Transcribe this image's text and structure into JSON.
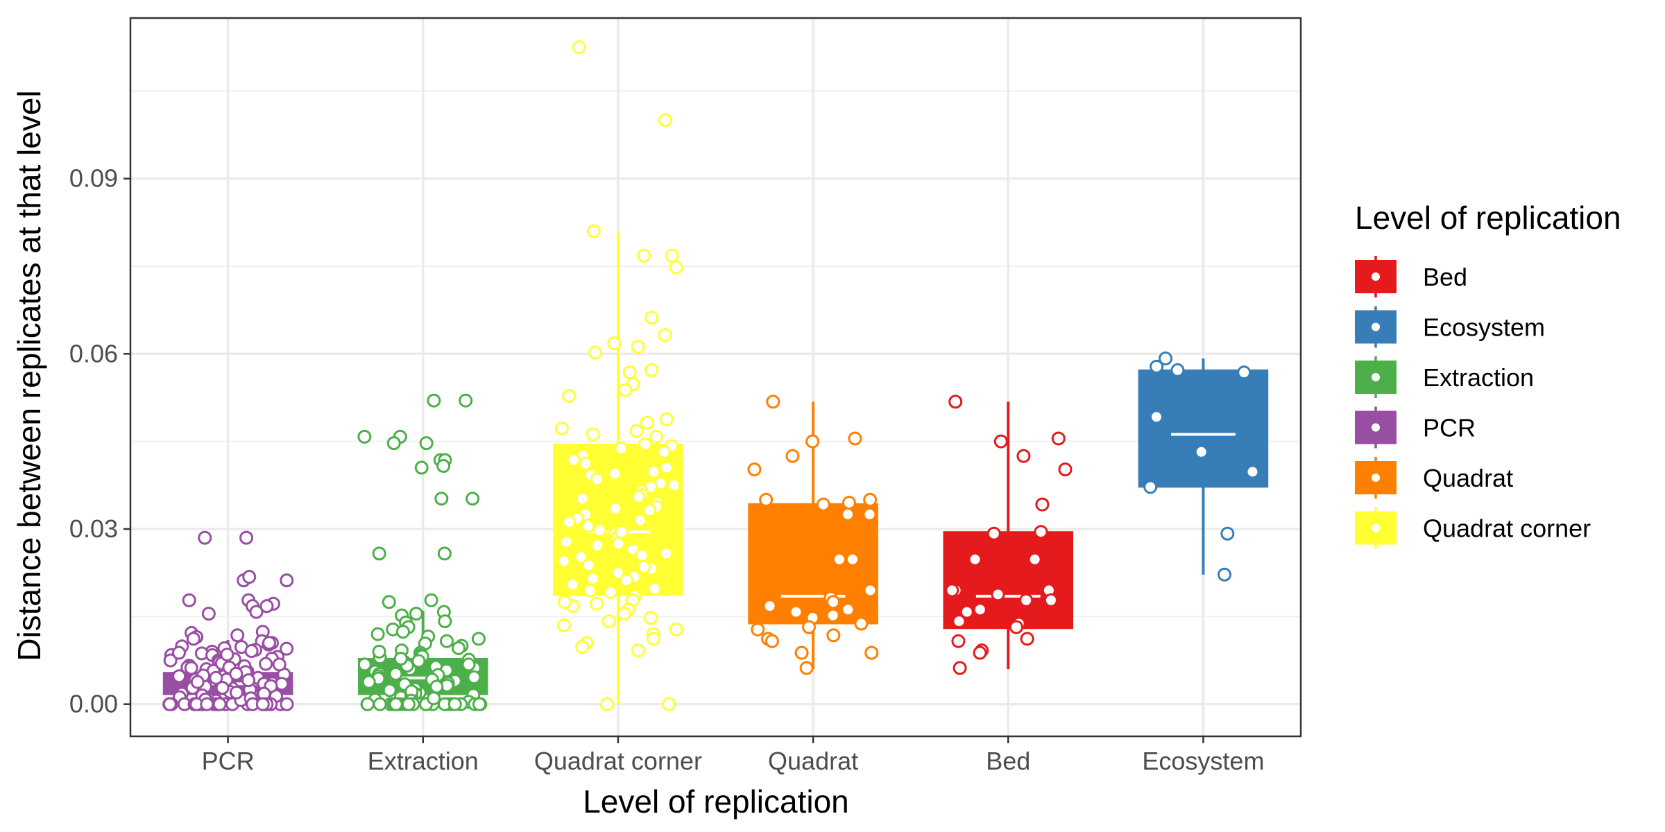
{
  "chart_data": {
    "type": "boxplot",
    "xlabel": "Level of replication",
    "ylabel": "Distance between replicates at that level",
    "ylim": [
      -0.0055,
      0.1175
    ],
    "yticks": [
      "0.00",
      "0.03",
      "0.06",
      "0.09"
    ],
    "ytick_values": [
      0,
      0.03,
      0.06,
      0.09
    ],
    "grid": true,
    "legend_position": "right",
    "legend_title": "Level of replication",
    "legend_items": [
      "Bed",
      "Ecosystem",
      "Extraction",
      "PCR",
      "Quadrat",
      "Quadrat corner"
    ],
    "categories": [
      "PCR",
      "Extraction",
      "Quadrat corner",
      "Quadrat",
      "Bed",
      "Ecosystem"
    ],
    "series": [
      {
        "name": "PCR",
        "color": "#984EA3",
        "box": {
          "q1": 0.0017,
          "median": 0.0035,
          "q3": 0.0054,
          "whisker_low": 0.0,
          "whisker_high": 0.011
        },
        "points": [
          0.0285,
          0.0285,
          0.0212,
          0.0212,
          0.0218,
          0.0178,
          0.0178,
          0.0172,
          0.0168,
          0.0168,
          0.0158,
          0.0155,
          0.0124,
          0.0122,
          0.0118,
          0.0115,
          0.0112,
          0.0108,
          0.0105,
          0.0102,
          0.0099,
          0.0096,
          0.0093,
          0.009,
          0.0087,
          0.0084,
          0.0081,
          0.0078,
          0.0075,
          0.0072,
          0.0069,
          0.0066,
          0.0063,
          0.006,
          0.0057,
          0.0054,
          0.0051,
          0.0048,
          0.0045,
          0.0042,
          0.0039,
          0.0036,
          0.0033,
          0.003,
          0.0027,
          0.0024,
          0.0021,
          0.0018,
          0.0015,
          0.0012,
          0.0009,
          0.0006,
          0.0003,
          0.0,
          0.0,
          0.0,
          0.0,
          0.0,
          0.0,
          0.0,
          0.0,
          0.0,
          0.0,
          0.0,
          0.0,
          0.0,
          0.0,
          0.0,
          0.0,
          0.0,
          0.0,
          0.0105,
          0.0098,
          0.0091,
          0.0084,
          0.0077,
          0.007,
          0.0063,
          0.0056,
          0.0049,
          0.0042,
          0.0035,
          0.0028,
          0.0021,
          0.0014,
          0.0007,
          0.0075,
          0.0065,
          0.0055,
          0.0045,
          0.0035,
          0.0025,
          0.0015,
          0.0005,
          0.0095,
          0.0085,
          0.0062,
          0.0052,
          0.0041,
          0.0031,
          0.002,
          0.001,
          0.0088,
          0.0068,
          0.0048,
          0.0038,
          0.0028,
          0.0018,
          0.0008,
          0.0,
          0.0,
          0.0,
          0.0,
          0.0,
          0.0,
          0.0,
          0.0,
          0.0,
          0.0,
          0.0
        ]
      },
      {
        "name": "Extraction",
        "color": "#4DAF4A",
        "box": {
          "q1": 0.0017,
          "median": 0.0045,
          "q3": 0.0078,
          "whisker_low": 0.0,
          "whisker_high": 0.016
        },
        "points": [
          0.052,
          0.052,
          0.0458,
          0.0458,
          0.0447,
          0.0447,
          0.0418,
          0.0418,
          0.0408,
          0.0405,
          0.0352,
          0.0352,
          0.0258,
          0.0258,
          0.0178,
          0.0175,
          0.0158,
          0.0155,
          0.0152,
          0.0142,
          0.014,
          0.0132,
          0.0128,
          0.0124,
          0.012,
          0.0116,
          0.0112,
          0.0108,
          0.0104,
          0.01,
          0.0096,
          0.0092,
          0.0088,
          0.0084,
          0.008,
          0.0076,
          0.0072,
          0.0068,
          0.0064,
          0.006,
          0.0056,
          0.0052,
          0.0048,
          0.0044,
          0.004,
          0.0036,
          0.0032,
          0.0028,
          0.0024,
          0.002,
          0.0016,
          0.0012,
          0.0008,
          0.0004,
          0.0,
          0.0,
          0.0,
          0.0,
          0.0,
          0.0,
          0.0,
          0.0,
          0.0,
          0.0,
          0.0,
          0.0,
          0.0,
          0.0,
          0.0,
          0.0,
          0.0,
          0.0,
          0.0,
          0.0,
          0.009,
          0.0082,
          0.0074,
          0.0066,
          0.0058,
          0.005,
          0.0042,
          0.0034,
          0.0026,
          0.0018,
          0.001,
          0.0078,
          0.0062,
          0.0046,
          0.003,
          0.0014,
          0.0068,
          0.0052,
          0.0038,
          0.0022,
          0.0006,
          0.0,
          0.0,
          0.0,
          0.0,
          0.0
        ]
      },
      {
        "name": "Quadrat corner",
        "color": "#FFFF33",
        "box": {
          "q1": 0.0187,
          "median": 0.0295,
          "q3": 0.0445,
          "whisker_low": 0.0,
          "whisker_high": 0.081
        },
        "points": [
          0.1125,
          0.1,
          0.081,
          0.0768,
          0.0768,
          0.0748,
          0.0662,
          0.0618,
          0.0612,
          0.0632,
          0.0602,
          0.0572,
          0.0568,
          0.0548,
          0.0538,
          0.0528,
          0.0488,
          0.0482,
          0.0472,
          0.0468,
          0.0462,
          0.0458,
          0.0445,
          0.0442,
          0.0438,
          0.0432,
          0.0425,
          0.0418,
          0.0412,
          0.0405,
          0.0398,
          0.0392,
          0.0385,
          0.0378,
          0.0372,
          0.0365,
          0.0358,
          0.0352,
          0.0345,
          0.0338,
          0.0332,
          0.0325,
          0.0318,
          0.0312,
          0.0305,
          0.0298,
          0.0292,
          0.0285,
          0.0278,
          0.0272,
          0.0265,
          0.0258,
          0.0252,
          0.0245,
          0.0238,
          0.0232,
          0.0225,
          0.0218,
          0.0212,
          0.0205,
          0.0198,
          0.0192,
          0.0185,
          0.0178,
          0.0172,
          0.0168,
          0.0162,
          0.0155,
          0.0148,
          0.0142,
          0.0135,
          0.0128,
          0.012,
          0.0112,
          0.0105,
          0.0098,
          0.0092,
          0.0,
          0.0,
          0.0395,
          0.0375,
          0.0355,
          0.0335,
          0.0315,
          0.0295,
          0.0275,
          0.0255,
          0.0235,
          0.0215,
          0.0195,
          0.0175
        ]
      },
      {
        "name": "Quadrat",
        "color": "#FF7F00",
        "box": {
          "q1": 0.0138,
          "median": 0.0185,
          "q3": 0.0343,
          "whisker_low": 0.006,
          "whisker_high": 0.0518
        },
        "points": [
          0.0518,
          0.0455,
          0.045,
          0.0425,
          0.0402,
          0.035,
          0.035,
          0.0345,
          0.0342,
          0.0325,
          0.0325,
          0.0248,
          0.0248,
          0.0195,
          0.0182,
          0.0175,
          0.0168,
          0.0162,
          0.0158,
          0.0152,
          0.0148,
          0.0138,
          0.0132,
          0.0128,
          0.0118,
          0.0112,
          0.0108,
          0.0088,
          0.0088,
          0.0062
        ]
      },
      {
        "name": "Bed",
        "color": "#E41A1C",
        "box": {
          "q1": 0.013,
          "median": 0.0185,
          "q3": 0.0295,
          "whisker_low": 0.006,
          "whisker_high": 0.0518
        },
        "points": [
          0.0518,
          0.0455,
          0.045,
          0.0425,
          0.0402,
          0.0342,
          0.0295,
          0.0292,
          0.0248,
          0.0248,
          0.0195,
          0.0195,
          0.0195,
          0.0188,
          0.0178,
          0.0178,
          0.0162,
          0.0158,
          0.0142,
          0.0138,
          0.0132,
          0.0112,
          0.0108,
          0.0092,
          0.0088,
          0.0062
        ]
      },
      {
        "name": "Ecosystem",
        "color": "#377EB8",
        "box": {
          "q1": 0.0372,
          "median": 0.0462,
          "q3": 0.0572,
          "whisker_low": 0.0222,
          "whisker_high": 0.0592
        },
        "points": [
          0.0592,
          0.0578,
          0.0572,
          0.0568,
          0.0492,
          0.0432,
          0.0398,
          0.0372,
          0.0292,
          0.0222
        ]
      }
    ]
  }
}
